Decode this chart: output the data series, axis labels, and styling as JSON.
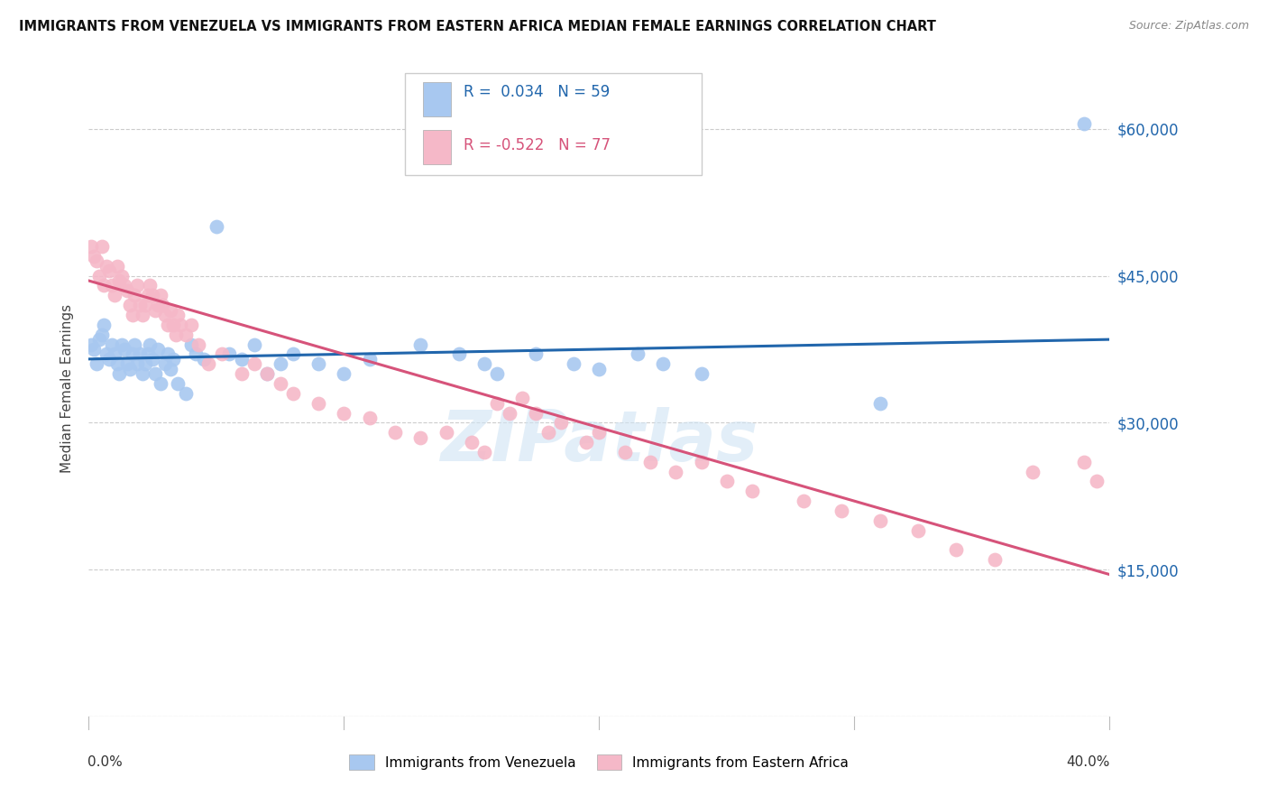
{
  "title": "IMMIGRANTS FROM VENEZUELA VS IMMIGRANTS FROM EASTERN AFRICA MEDIAN FEMALE EARNINGS CORRELATION CHART",
  "source": "Source: ZipAtlas.com",
  "ylabel": "Median Female Earnings",
  "yticks": [
    0,
    15000,
    30000,
    45000,
    60000
  ],
  "ytick_labels": [
    "",
    "$15,000",
    "$30,000",
    "$45,000",
    "$60,000"
  ],
  "xlim": [
    0.0,
    0.4
  ],
  "ylim": [
    0,
    67000
  ],
  "watermark": "ZIPatlas",
  "label_venezuela": "Immigrants from Venezuela",
  "label_eastern_africa": "Immigrants from Eastern Africa",
  "blue_color": "#a8c8f0",
  "pink_color": "#f5b8c8",
  "blue_line_color": "#2166ac",
  "pink_line_color": "#d6537a",
  "blue_trend_x": [
    0.0,
    0.4
  ],
  "blue_trend_y": [
    36500,
    38500
  ],
  "pink_trend_x": [
    0.0,
    0.4
  ],
  "pink_trend_y": [
    44500,
    14500
  ],
  "venezuela_x": [
    0.001,
    0.002,
    0.003,
    0.004,
    0.005,
    0.006,
    0.007,
    0.008,
    0.009,
    0.01,
    0.011,
    0.012,
    0.013,
    0.014,
    0.015,
    0.016,
    0.017,
    0.018,
    0.019,
    0.02,
    0.021,
    0.022,
    0.023,
    0.024,
    0.025,
    0.026,
    0.027,
    0.028,
    0.03,
    0.031,
    0.032,
    0.033,
    0.035,
    0.038,
    0.04,
    0.042,
    0.045,
    0.05,
    0.055,
    0.06,
    0.065,
    0.07,
    0.075,
    0.08,
    0.09,
    0.1,
    0.11,
    0.13,
    0.145,
    0.155,
    0.16,
    0.175,
    0.19,
    0.2,
    0.215,
    0.225,
    0.24,
    0.31,
    0.39
  ],
  "venezuela_y": [
    38000,
    37500,
    36000,
    38500,
    39000,
    40000,
    37000,
    36500,
    38000,
    37000,
    36000,
    35000,
    38000,
    37500,
    36000,
    35500,
    37000,
    38000,
    36000,
    37000,
    35000,
    36000,
    37000,
    38000,
    36500,
    35000,
    37500,
    34000,
    36000,
    37000,
    35500,
    36500,
    34000,
    33000,
    38000,
    37000,
    36500,
    50000,
    37000,
    36500,
    38000,
    35000,
    36000,
    37000,
    36000,
    35000,
    36500,
    38000,
    37000,
    36000,
    35000,
    37000,
    36000,
    35500,
    37000,
    36000,
    35000,
    32000,
    60500
  ],
  "eastern_africa_x": [
    0.001,
    0.002,
    0.003,
    0.004,
    0.005,
    0.006,
    0.007,
    0.008,
    0.009,
    0.01,
    0.011,
    0.012,
    0.013,
    0.014,
    0.015,
    0.016,
    0.017,
    0.018,
    0.019,
    0.02,
    0.021,
    0.022,
    0.023,
    0.024,
    0.025,
    0.026,
    0.027,
    0.028,
    0.029,
    0.03,
    0.031,
    0.032,
    0.033,
    0.034,
    0.035,
    0.036,
    0.038,
    0.04,
    0.043,
    0.047,
    0.052,
    0.06,
    0.065,
    0.07,
    0.075,
    0.08,
    0.09,
    0.1,
    0.11,
    0.12,
    0.13,
    0.14,
    0.15,
    0.155,
    0.16,
    0.165,
    0.17,
    0.175,
    0.18,
    0.185,
    0.195,
    0.2,
    0.21,
    0.22,
    0.23,
    0.24,
    0.25,
    0.26,
    0.28,
    0.295,
    0.31,
    0.325,
    0.34,
    0.355,
    0.37,
    0.39,
    0.395
  ],
  "eastern_africa_y": [
    48000,
    47000,
    46500,
    45000,
    48000,
    44000,
    46000,
    45500,
    44000,
    43000,
    46000,
    44500,
    45000,
    44000,
    43500,
    42000,
    41000,
    43000,
    44000,
    42000,
    41000,
    42000,
    43000,
    44000,
    43000,
    41500,
    42000,
    43000,
    42000,
    41000,
    40000,
    41500,
    40000,
    39000,
    41000,
    40000,
    39000,
    40000,
    38000,
    36000,
    37000,
    35000,
    36000,
    35000,
    34000,
    33000,
    32000,
    31000,
    30500,
    29000,
    28500,
    29000,
    28000,
    27000,
    32000,
    31000,
    32500,
    31000,
    29000,
    30000,
    28000,
    29000,
    27000,
    26000,
    25000,
    26000,
    24000,
    23000,
    22000,
    21000,
    20000,
    19000,
    17000,
    16000,
    25000,
    26000,
    24000
  ]
}
